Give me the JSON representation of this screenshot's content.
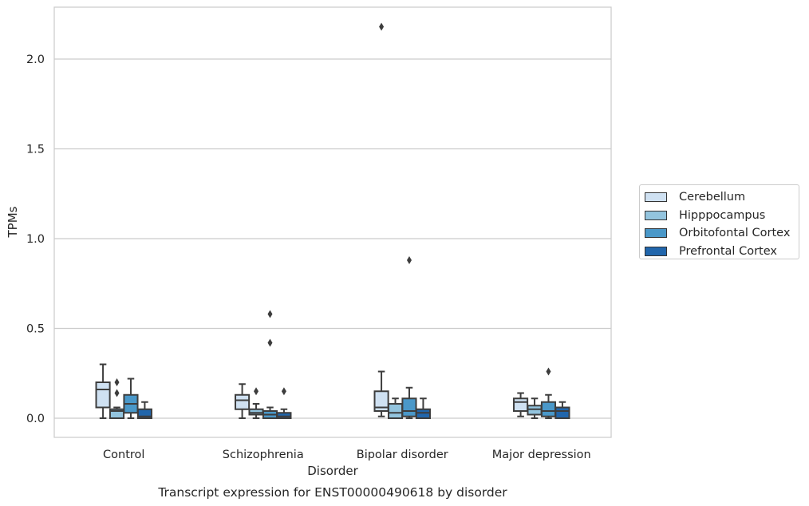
{
  "chart_data": {
    "type": "box",
    "title": "",
    "caption": "Transcript expression for ENST00000490618 by disorder",
    "xlabel": "Disorder",
    "ylabel": "TPMs",
    "ylim": [
      -0.1,
      2.3
    ],
    "yticks": [
      "0.0",
      "0.5",
      "1.0",
      "1.5",
      "2.0"
    ],
    "ytick_values": [
      0.0,
      0.5,
      1.0,
      1.5,
      2.0
    ],
    "grid": true,
    "legend_placement": "right",
    "categories": [
      "Control",
      "Schizophrenia",
      "Bipolar disorder",
      "Major depression"
    ],
    "series": [
      {
        "name": "Cerebellum",
        "color": "#cfe1f2",
        "boxes": [
          {
            "q1": 0.06,
            "median": 0.16,
            "q3": 0.2,
            "whislo": 0.0,
            "whishi": 0.3,
            "fliers": []
          },
          {
            "q1": 0.05,
            "median": 0.1,
            "q3": 0.13,
            "whislo": 0.0,
            "whishi": 0.19,
            "fliers": []
          },
          {
            "q1": 0.04,
            "median": 0.06,
            "q3": 0.15,
            "whislo": 0.01,
            "whishi": 0.26,
            "fliers": [
              2.18
            ]
          },
          {
            "q1": 0.04,
            "median": 0.09,
            "q3": 0.11,
            "whislo": 0.01,
            "whishi": 0.14,
            "fliers": []
          }
        ]
      },
      {
        "name": "Hipppocampus",
        "color": "#93c4de",
        "boxes": [
          {
            "q1": 0.0,
            "median": 0.04,
            "q3": 0.05,
            "whislo": 0.0,
            "whishi": 0.06,
            "fliers": [
              0.2,
              0.14
            ]
          },
          {
            "q1": 0.02,
            "median": 0.03,
            "q3": 0.05,
            "whislo": 0.0,
            "whishi": 0.08,
            "fliers": [
              0.15
            ]
          },
          {
            "q1": 0.0,
            "median": 0.03,
            "q3": 0.08,
            "whislo": 0.0,
            "whishi": 0.11,
            "fliers": []
          },
          {
            "q1": 0.02,
            "median": 0.05,
            "q3": 0.07,
            "whislo": 0.0,
            "whishi": 0.11,
            "fliers": []
          }
        ]
      },
      {
        "name": "Orbitofontal Cortex",
        "color": "#4a98c9",
        "boxes": [
          {
            "q1": 0.03,
            "median": 0.08,
            "q3": 0.13,
            "whislo": 0.0,
            "whishi": 0.22,
            "fliers": []
          },
          {
            "q1": 0.0,
            "median": 0.02,
            "q3": 0.04,
            "whislo": 0.0,
            "whishi": 0.06,
            "fliers": [
              0.58,
              0.42
            ]
          },
          {
            "q1": 0.01,
            "median": 0.04,
            "q3": 0.11,
            "whislo": 0.0,
            "whishi": 0.17,
            "fliers": [
              0.88
            ]
          },
          {
            "q1": 0.01,
            "median": 0.04,
            "q3": 0.09,
            "whislo": 0.0,
            "whishi": 0.13,
            "fliers": [
              0.26
            ]
          }
        ]
      },
      {
        "name": "Prefrontal Cortex",
        "color": "#2166ac",
        "boxes": [
          {
            "q1": 0.0,
            "median": 0.01,
            "q3": 0.05,
            "whislo": 0.0,
            "whishi": 0.09,
            "fliers": []
          },
          {
            "q1": 0.0,
            "median": 0.01,
            "q3": 0.03,
            "whislo": 0.0,
            "whishi": 0.05,
            "fliers": [
              0.15
            ]
          },
          {
            "q1": 0.0,
            "median": 0.03,
            "q3": 0.05,
            "whislo": 0.0,
            "whishi": 0.11,
            "fliers": []
          },
          {
            "q1": 0.0,
            "median": 0.04,
            "q3": 0.06,
            "whislo": 0.0,
            "whishi": 0.09,
            "fliers": []
          }
        ]
      }
    ]
  }
}
